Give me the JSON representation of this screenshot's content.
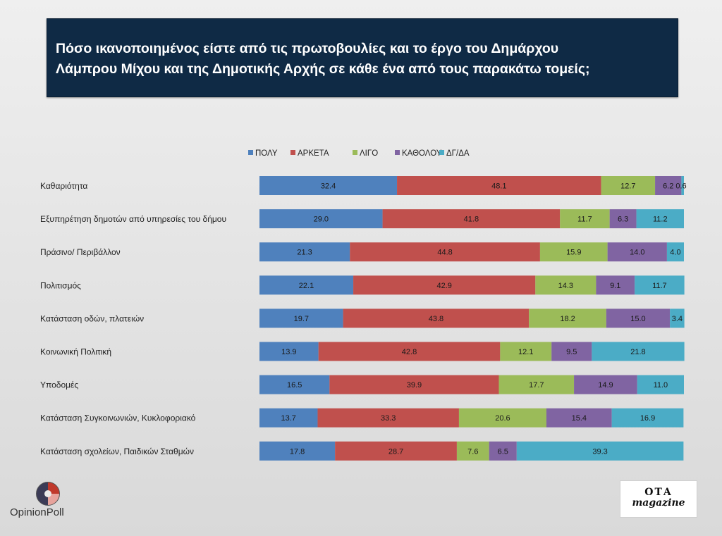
{
  "title": {
    "line1": "Πόσο ικανοποιημένος είστε από τις πρωτοβουλίες και το έργο του Δημάρχου",
    "line2": "Λάμπρου Μίχου και της Δημοτικής Αρχής σε κάθε ένα από τους παρακάτω τομείς;"
  },
  "chart_data": {
    "type": "bar",
    "orientation": "horizontal",
    "stacked": true,
    "percent": true,
    "legend_position": "top",
    "categories": [
      "Καθαριότητα",
      "Εξυπηρέτηση δημοτών από υπηρεσίες του δήμου",
      "Πράσινο/ Περιβάλλον",
      "Πολιτισμός",
      "Κατάσταση οδών, πλατειών",
      "Κοινωνική Πολιτική",
      "Υποδομές",
      "Κατάσταση Συγκοινωνιών, Κυκλοφοριακό",
      "Κατάσταση σχολείων, Παιδικών Σταθμών"
    ],
    "series": [
      {
        "name": "ΠΟΛΥ",
        "color": "#4f81bd",
        "values": [
          32.4,
          29.0,
          21.3,
          22.1,
          19.7,
          13.9,
          16.5,
          13.7,
          17.8
        ]
      },
      {
        "name": "ΑΡΚΕΤΑ",
        "color": "#c0504d",
        "values": [
          48.1,
          41.8,
          44.8,
          42.9,
          43.8,
          42.8,
          39.9,
          33.3,
          28.7
        ]
      },
      {
        "name": "ΛΙΓΟ",
        "color": "#9bbb59",
        "values": [
          12.7,
          11.7,
          15.9,
          14.3,
          18.2,
          12.1,
          17.7,
          20.6,
          7.6
        ]
      },
      {
        "name": "ΚΑΘΟΛΟΥ",
        "color": "#8064a2",
        "values": [
          6.2,
          6.3,
          14.0,
          9.1,
          15.0,
          9.5,
          14.9,
          15.4,
          6.5
        ]
      },
      {
        "name": "ΔΓ/ΔΑ",
        "color": "#4bacc6",
        "values": [
          0.6,
          11.2,
          4.0,
          11.7,
          3.4,
          21.8,
          11.0,
          16.9,
          39.3
        ]
      }
    ],
    "value_labels": [
      [
        "32.4",
        "48.1",
        "12.7",
        "6.2",
        "0.6"
      ],
      [
        "29.0",
        "41.8",
        "11.7",
        "6.3",
        "11.2"
      ],
      [
        "21.3",
        "44.8",
        "15.9",
        "14.0",
        "4.0"
      ],
      [
        "22.1",
        "42.9",
        "14.3",
        "9.1",
        "11.7"
      ],
      [
        "19.7",
        "43.8",
        "18.2",
        "15.0",
        "3.4"
      ],
      [
        "13.9",
        "42.8",
        "12.1",
        "9.5",
        "21.8"
      ],
      [
        "16.5",
        "39.9",
        "17.7",
        "14.9",
        "11.0"
      ],
      [
        "13.7",
        "33.3",
        "20.6",
        "15.4",
        "16.9"
      ],
      [
        "17.8",
        "28.7",
        "7.6",
        "6.5",
        "39.3"
      ]
    ],
    "xlim": [
      0,
      100
    ]
  },
  "logos": {
    "left_text": "OpinionPoll",
    "right_line1": "ΟΤΑ",
    "right_line2": "magazine"
  }
}
